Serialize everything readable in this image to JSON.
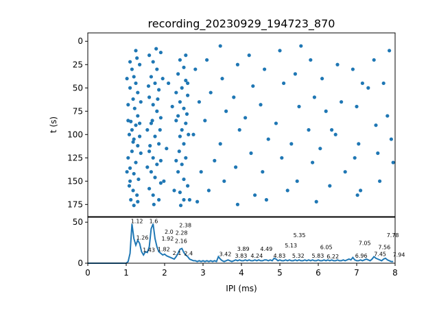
{
  "chart_data": [
    {
      "type": "scatter",
      "title": "recording_20230929_194723_870",
      "xlabel": "",
      "ylabel": "t (s)",
      "xlim": [
        0,
        8
      ],
      "ylim": [
        188,
        -9
      ],
      "yticks": [
        0,
        25,
        50,
        75,
        100,
        125,
        150,
        175
      ],
      "color": "#1f77b4",
      "points": [
        [
          1.1,
          22
        ],
        [
          1.15,
          30
        ],
        [
          1.2,
          38
        ],
        [
          1.25,
          45
        ],
        [
          1.1,
          50
        ],
        [
          1.3,
          55
        ],
        [
          1.18,
          62
        ],
        [
          1.05,
          68
        ],
        [
          1.22,
          72
        ],
        [
          1.3,
          80
        ],
        [
          1.12,
          86
        ],
        [
          1.25,
          90
        ],
        [
          1.08,
          100
        ],
        [
          1.2,
          105
        ],
        [
          1.3,
          112
        ],
        [
          1.15,
          118
        ],
        [
          1.05,
          125
        ],
        [
          1.25,
          130
        ],
        [
          1.1,
          136
        ],
        [
          1.2,
          142
        ],
        [
          1.32,
          148
        ],
        [
          1.08,
          155
        ],
        [
          1.18,
          160
        ],
        [
          1.28,
          165
        ],
        [
          1.12,
          170
        ],
        [
          1.2,
          176
        ],
        [
          1.35,
          25
        ],
        [
          1.02,
          40
        ],
        [
          1.38,
          65
        ],
        [
          1.15,
          95
        ],
        [
          1.35,
          102
        ],
        [
          1.02,
          140
        ],
        [
          1.38,
          120
        ],
        [
          1.25,
          10
        ],
        [
          1.28,
          18
        ],
        [
          1.05,
          85
        ],
        [
          1.35,
          88
        ],
        [
          1.18,
          108
        ],
        [
          1.1,
          150
        ],
        [
          1.3,
          172
        ],
        [
          1.6,
          15
        ],
        [
          1.7,
          22
        ],
        [
          1.8,
          30
        ],
        [
          1.65,
          38
        ],
        [
          1.75,
          45
        ],
        [
          1.85,
          52
        ],
        [
          1.6,
          60
        ],
        [
          1.7,
          68
        ],
        [
          1.8,
          75
        ],
        [
          1.9,
          82
        ],
        [
          1.65,
          88
        ],
        [
          1.55,
          95
        ],
        [
          1.75,
          102
        ],
        [
          1.85,
          110
        ],
        [
          1.6,
          118
        ],
        [
          1.7,
          125
        ],
        [
          1.8,
          132
        ],
        [
          1.65,
          140
        ],
        [
          1.75,
          146
        ],
        [
          1.9,
          152
        ],
        [
          1.6,
          158
        ],
        [
          1.7,
          165
        ],
        [
          1.85,
          170
        ],
        [
          1.78,
          8
        ],
        [
          1.9,
          12
        ],
        [
          1.58,
          48
        ],
        [
          1.95,
          40
        ],
        [
          1.62,
          112
        ],
        [
          1.9,
          128
        ],
        [
          1.55,
          135
        ],
        [
          1.72,
          175
        ],
        [
          1.82,
          62
        ],
        [
          1.68,
          85
        ],
        [
          1.88,
          95
        ],
        [
          1.98,
          150
        ],
        [
          2.4,
          20
        ],
        [
          2.5,
          28
        ],
        [
          2.35,
          35
        ],
        [
          2.55,
          42
        ],
        [
          2.45,
          50
        ],
        [
          2.6,
          58
        ],
        [
          2.4,
          65
        ],
        [
          2.5,
          72
        ],
        [
          2.35,
          80
        ],
        [
          2.55,
          88
        ],
        [
          2.45,
          95
        ],
        [
          2.4,
          102
        ],
        [
          2.5,
          110
        ],
        [
          2.38,
          118
        ],
        [
          2.55,
          125
        ],
        [
          2.45,
          132
        ],
        [
          2.35,
          140
        ],
        [
          2.5,
          148
        ],
        [
          2.6,
          155
        ],
        [
          2.4,
          162
        ],
        [
          2.5,
          170
        ],
        [
          2.55,
          15
        ],
        [
          2.3,
          55
        ],
        [
          2.62,
          100
        ],
        [
          2.3,
          128
        ],
        [
          2.65,
          170
        ],
        [
          2.3,
          85
        ],
        [
          2.6,
          45
        ],
        [
          2.42,
          176
        ],
        [
          2.58,
          78
        ],
        [
          2.1,
          45
        ],
        [
          2.2,
          70
        ],
        [
          2.05,
          115
        ],
        [
          2.25,
          160
        ],
        [
          2.8,
          30
        ],
        [
          2.9,
          65
        ],
        [
          2.75,
          100
        ],
        [
          2.95,
          140
        ],
        [
          2.85,
          172
        ],
        [
          3.1,
          20
        ],
        [
          3.2,
          55
        ],
        [
          3.05,
          85
        ],
        [
          3.3,
          128
        ],
        [
          3.15,
          160
        ],
        [
          3.45,
          5
        ],
        [
          3.5,
          40
        ],
        [
          3.6,
          75
        ],
        [
          3.45,
          110
        ],
        [
          3.55,
          150
        ],
        [
          3.9,
          25
        ],
        [
          3.8,
          60
        ],
        [
          3.95,
          95
        ],
        [
          3.85,
          135
        ],
        [
          3.9,
          175
        ],
        [
          4.2,
          15
        ],
        [
          4.3,
          48
        ],
        [
          4.1,
          82
        ],
        [
          4.25,
          120
        ],
        [
          4.35,
          165
        ],
        [
          4.6,
          30
        ],
        [
          4.5,
          68
        ],
        [
          4.7,
          105
        ],
        [
          4.55,
          140
        ],
        [
          4.65,
          170
        ],
        [
          5.0,
          10
        ],
        [
          5.1,
          45
        ],
        [
          4.9,
          88
        ],
        [
          5.05,
          125
        ],
        [
          5.2,
          160
        ],
        [
          5.4,
          35
        ],
        [
          5.5,
          70
        ],
        [
          5.3,
          110
        ],
        [
          5.45,
          150
        ],
        [
          5.8,
          20
        ],
        [
          5.9,
          60
        ],
        [
          5.75,
          95
        ],
        [
          5.85,
          130
        ],
        [
          5.95,
          172
        ],
        [
          6.1,
          40
        ],
        [
          6.2,
          75
        ],
        [
          6.05,
          115
        ],
        [
          6.3,
          155
        ],
        [
          6.5,
          25
        ],
        [
          6.6,
          65
        ],
        [
          6.45,
          100
        ],
        [
          6.7,
          140
        ],
        [
          6.9,
          30
        ],
        [
          7.0,
          70
        ],
        [
          7.05,
          110
        ],
        [
          7.1,
          160
        ],
        [
          7.3,
          50
        ],
        [
          7.45,
          20
        ],
        [
          7.5,
          90
        ],
        [
          7.55,
          120
        ],
        [
          7.6,
          150
        ],
        [
          7.7,
          45
        ],
        [
          7.8,
          80
        ],
        [
          7.9,
          105
        ],
        [
          7.95,
          130
        ],
        [
          7.85,
          10
        ],
        [
          7.02,
          165
        ],
        [
          7.15,
          45
        ],
        [
          6.95,
          125
        ],
        [
          5.55,
          5
        ],
        [
          6.35,
          95
        ]
      ]
    },
    {
      "type": "line",
      "xlabel": "IPI (ms)",
      "ylabel": "",
      "xlim": [
        0,
        8
      ],
      "ylim": [
        0,
        56
      ],
      "xticks": [
        0,
        1,
        2,
        3,
        4,
        5,
        6,
        7,
        8
      ],
      "yticks": [
        0,
        50
      ],
      "color": "#1f77b4",
      "x_step": 0.05,
      "values": [
        0,
        0,
        0,
        0,
        0,
        0,
        0,
        0,
        0,
        0,
        0,
        0,
        0,
        0,
        0,
        0,
        0,
        0,
        0,
        0,
        0,
        2,
        12,
        48,
        30,
        22,
        28,
        24,
        14,
        10,
        14,
        13,
        20,
        42,
        48,
        30,
        20,
        14,
        12,
        10,
        11,
        9,
        8,
        7,
        6,
        5,
        8,
        12,
        17,
        18,
        13,
        10,
        8,
        5,
        4,
        3,
        3,
        2,
        3,
        2,
        3,
        2,
        3,
        2,
        3,
        2,
        3,
        2,
        8,
        5,
        3,
        2,
        3,
        4,
        3,
        2,
        3,
        4,
        3,
        4,
        3,
        3,
        4,
        3,
        4,
        3,
        3,
        4,
        3,
        4,
        3,
        3,
        4,
        4,
        3,
        4,
        3,
        6,
        5,
        3,
        4,
        3,
        3,
        4,
        3,
        4,
        3,
        3,
        4,
        3,
        4,
        3,
        3,
        4,
        3,
        4,
        3,
        4,
        3,
        3,
        4,
        3,
        3,
        4,
        3,
        4,
        3,
        4,
        3,
        3,
        4,
        3,
        3,
        4,
        3,
        4,
        5,
        4,
        7,
        4,
        3,
        3,
        4,
        3,
        4,
        5,
        4,
        3,
        5,
        8,
        6,
        5,
        4,
        3,
        5,
        6,
        4,
        3,
        2,
        2
      ],
      "peak_labels": [
        {
          "x": 1.12,
          "y": 48,
          "text": "1.12"
        },
        {
          "x": 1.26,
          "y": 28,
          "text": "1.26"
        },
        {
          "x": 1.43,
          "y": 13,
          "text": "1.43"
        },
        {
          "x": 1.6,
          "y": 48,
          "text": "1.6"
        },
        {
          "x": 1.82,
          "y": 14,
          "text": "1.82"
        },
        {
          "x": 1.92,
          "y": 10,
          "text": "1.92"
        },
        {
          "x": 2.0,
          "y": 10,
          "text": "2.0"
        },
        {
          "x": 2.1,
          "y": 9,
          "text": "2.1"
        },
        {
          "x": 2.16,
          "y": 7,
          "text": "2.16"
        },
        {
          "x": 2.28,
          "y": 17,
          "text": "2.28"
        },
        {
          "x": 2.38,
          "y": 18,
          "text": "2.38"
        },
        {
          "x": 2.4,
          "y": 17,
          "text": "2.4"
        },
        {
          "x": 3.42,
          "y": 8,
          "text": "3.42"
        },
        {
          "x": 3.83,
          "y": 6,
          "text": "3.83"
        },
        {
          "x": 3.89,
          "y": 6,
          "text": "3.89"
        },
        {
          "x": 4.24,
          "y": 6,
          "text": "4.24"
        },
        {
          "x": 4.49,
          "y": 6,
          "text": "4.49"
        },
        {
          "x": 4.83,
          "y": 6,
          "text": "4.83"
        },
        {
          "x": 5.13,
          "y": 10,
          "text": "5.13"
        },
        {
          "x": 5.32,
          "y": 6,
          "text": "5.32"
        },
        {
          "x": 5.35,
          "y": 6,
          "text": "5.35"
        },
        {
          "x": 5.83,
          "y": 6,
          "text": "5.83"
        },
        {
          "x": 6.05,
          "y": 8,
          "text": "6.05"
        },
        {
          "x": 6.22,
          "y": 5,
          "text": "6.22"
        },
        {
          "x": 6.96,
          "y": 6,
          "text": "6.96"
        },
        {
          "x": 7.05,
          "y": 13,
          "text": "7.05"
        },
        {
          "x": 7.45,
          "y": 8,
          "text": "7.45"
        },
        {
          "x": 7.56,
          "y": 8,
          "text": "7.56"
        },
        {
          "x": 7.78,
          "y": 6,
          "text": "7.78"
        },
        {
          "x": 7.94,
          "y": 7,
          "text": "7.94"
        }
      ]
    }
  ]
}
